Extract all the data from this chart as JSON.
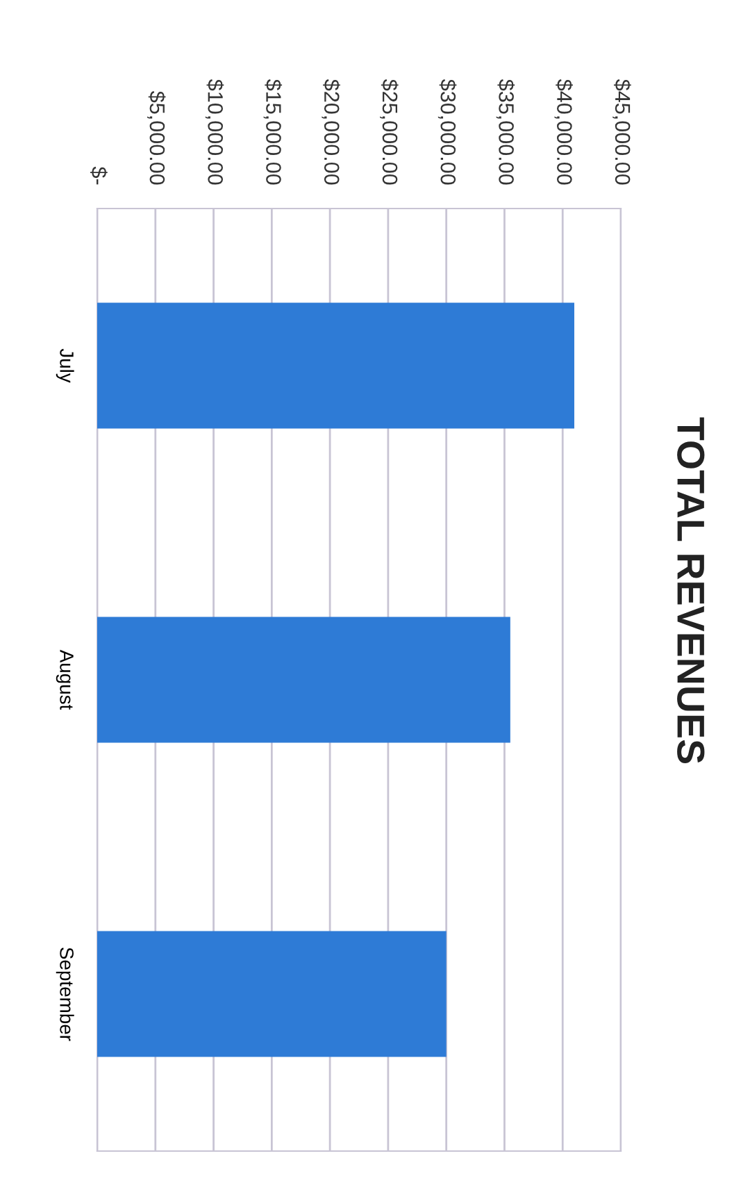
{
  "chart_data": {
    "type": "bar",
    "title": "TOTAL REVENUES",
    "orientation": "horizontal",
    "categories": [
      "July",
      "August",
      "September"
    ],
    "values": [
      41000,
      35500,
      30000
    ],
    "color": "#2e7bd6",
    "xlim": [
      0,
      45000
    ],
    "xticks": [
      {
        "value": 0,
        "label": "$-"
      },
      {
        "value": 5000,
        "label": "$5,000.00"
      },
      {
        "value": 10000,
        "label": "$10,000.00"
      },
      {
        "value": 15000,
        "label": "$15,000.00"
      },
      {
        "value": 20000,
        "label": "$20,000.00"
      },
      {
        "value": 25000,
        "label": "$25,000.00"
      },
      {
        "value": 30000,
        "label": "$30,000.00"
      },
      {
        "value": 35000,
        "label": "$35,000.00"
      },
      {
        "value": 40000,
        "label": "$40,000.00"
      },
      {
        "value": 45000,
        "label": "$45,000.00"
      }
    ],
    "grid": "x"
  }
}
